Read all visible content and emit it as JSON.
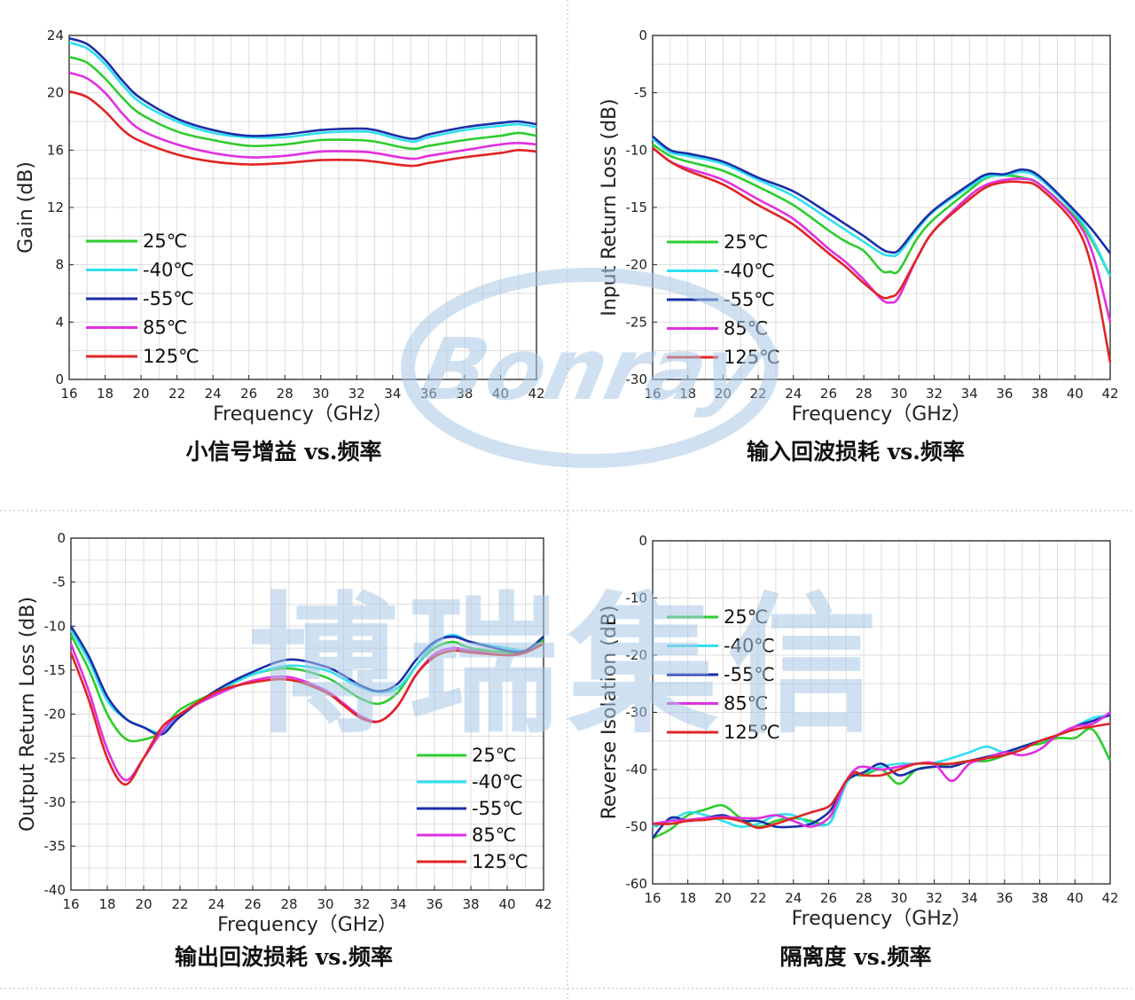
{
  "colors": {
    "25C": "#2ecc2e",
    "m40C": "#2fe0ee",
    "m55C": "#1a2ea8",
    "85C": "#e030e0",
    "125C": "#e02424",
    "grid": "#dddddd",
    "divider": "#bbbbbb",
    "watermark": "#a9c9e6"
  },
  "watermark": {
    "logo_text": "Bonray",
    "chinese_text": "博瑞集信"
  },
  "chart_data": [
    {
      "type": "line",
      "id": "gain",
      "caption": "小信号增益 vs.频率",
      "xlabel": "Frequency（GHz）",
      "ylabel": "Gain (dB)",
      "xlim": [
        16,
        42
      ],
      "ylim": [
        0,
        24
      ],
      "xticks": [
        16,
        18,
        20,
        22,
        24,
        26,
        28,
        30,
        32,
        34,
        36,
        38,
        40,
        42
      ],
      "yticks": [
        0,
        4,
        8,
        12,
        16,
        20,
        24
      ],
      "grid": true,
      "legend_position": "left-bottom",
      "x": [
        16,
        17,
        18,
        19,
        20,
        22,
        24,
        26,
        28,
        30,
        32,
        33,
        35,
        36,
        38,
        40,
        41,
        42
      ],
      "series": [
        {
          "name": "25℃",
          "color_key": "25C",
          "values": [
            22.5,
            22.1,
            21.0,
            19.6,
            18.5,
            17.3,
            16.7,
            16.3,
            16.4,
            16.7,
            16.7,
            16.6,
            16.1,
            16.3,
            16.7,
            17.0,
            17.2,
            17.0
          ]
        },
        {
          "name": "-40℃",
          "color_key": "m40C",
          "values": [
            23.5,
            23.1,
            22.0,
            20.5,
            19.3,
            18.0,
            17.2,
            16.9,
            16.9,
            17.2,
            17.3,
            17.2,
            16.6,
            16.9,
            17.4,
            17.7,
            17.8,
            17.6
          ]
        },
        {
          "name": "-55℃",
          "color_key": "m55C",
          "values": [
            23.8,
            23.4,
            22.3,
            20.8,
            19.6,
            18.2,
            17.4,
            17.0,
            17.1,
            17.4,
            17.5,
            17.4,
            16.8,
            17.1,
            17.6,
            17.9,
            18.0,
            17.8
          ]
        },
        {
          "name": "85℃",
          "color_key": "85C",
          "values": [
            21.4,
            21.0,
            20.0,
            18.5,
            17.4,
            16.4,
            15.8,
            15.5,
            15.6,
            15.9,
            15.9,
            15.8,
            15.4,
            15.6,
            16.0,
            16.4,
            16.5,
            16.4
          ]
        },
        {
          "name": "125℃",
          "color_key": "125C",
          "values": [
            20.1,
            19.7,
            18.7,
            17.4,
            16.6,
            15.7,
            15.2,
            15.0,
            15.1,
            15.3,
            15.3,
            15.2,
            14.9,
            15.1,
            15.5,
            15.8,
            16.0,
            15.9
          ]
        }
      ]
    },
    {
      "type": "line",
      "id": "input_return_loss",
      "caption": "输入回波损耗 vs.频率",
      "xlabel": "Frequency（GHz）",
      "ylabel": "Input Return Loss (dB)",
      "xlim": [
        16,
        42
      ],
      "ylim": [
        -30,
        0
      ],
      "xticks": [
        16,
        18,
        20,
        22,
        24,
        26,
        28,
        30,
        32,
        34,
        36,
        38,
        40,
        42
      ],
      "yticks": [
        0,
        -5,
        -10,
        -15,
        -20,
        -25,
        -30
      ],
      "grid": true,
      "legend_position": "left-bottom",
      "x": [
        16,
        17,
        18,
        20,
        22,
        24,
        26,
        27,
        28,
        29,
        29.5,
        30,
        31,
        32,
        34,
        35,
        36,
        37,
        38,
        40,
        41,
        42
      ],
      "series": [
        {
          "name": "25℃",
          "color_key": "25C",
          "values": [
            -9.5,
            -10.5,
            -11.0,
            -11.8,
            -13.2,
            -14.8,
            -17.0,
            -18.0,
            -18.8,
            -20.5,
            -20.6,
            -20.5,
            -17.8,
            -16.0,
            -13.5,
            -12.4,
            -12.2,
            -12.4,
            -13.0,
            -15.8,
            -18.0,
            -21.0
          ]
        },
        {
          "name": "-40℃",
          "color_key": "m40C",
          "values": [
            -9.0,
            -10.2,
            -10.5,
            -11.2,
            -12.6,
            -14.0,
            -16.0,
            -17.0,
            -18.0,
            -19.0,
            -19.2,
            -19.0,
            -17.0,
            -15.3,
            -13.2,
            -12.3,
            -12.2,
            -11.9,
            -12.5,
            -15.5,
            -17.8,
            -21.0
          ]
        },
        {
          "name": "-55℃",
          "color_key": "m55C",
          "values": [
            -8.8,
            -10.0,
            -10.3,
            -11.0,
            -12.4,
            -13.6,
            -15.5,
            -16.5,
            -17.5,
            -18.6,
            -18.9,
            -18.7,
            -16.8,
            -15.2,
            -13.0,
            -12.1,
            -12.1,
            -11.7,
            -12.3,
            -15.3,
            -17.0,
            -19.0
          ]
        },
        {
          "name": "85℃",
          "color_key": "85C",
          "values": [
            -9.8,
            -11.0,
            -11.6,
            -12.6,
            -14.3,
            -16.0,
            -18.6,
            -19.8,
            -21.3,
            -23.0,
            -23.3,
            -22.8,
            -19.5,
            -17.0,
            -14.0,
            -13.0,
            -12.6,
            -12.5,
            -13.0,
            -16.0,
            -19.0,
            -25.0
          ]
        },
        {
          "name": "125℃",
          "color_key": "125C",
          "values": [
            -9.8,
            -11.0,
            -11.8,
            -13.0,
            -14.8,
            -16.5,
            -19.0,
            -20.2,
            -21.6,
            -22.8,
            -22.8,
            -22.3,
            -19.5,
            -17.0,
            -14.3,
            -13.2,
            -12.8,
            -12.8,
            -13.3,
            -16.5,
            -20.5,
            -28.5
          ]
        }
      ]
    },
    {
      "type": "line",
      "id": "output_return_loss",
      "caption": "输出回波损耗 vs.频率",
      "xlabel": "Frequency（GHz）",
      "ylabel": "Output Return Loss (dB)",
      "xlim": [
        16,
        42
      ],
      "ylim": [
        -40,
        0
      ],
      "xticks": [
        16,
        18,
        20,
        22,
        24,
        26,
        28,
        30,
        32,
        34,
        36,
        38,
        40,
        42
      ],
      "yticks": [
        0,
        -5,
        -10,
        -15,
        -20,
        -25,
        -30,
        -35,
        -40
      ],
      "grid": true,
      "legend_position": "right-bottom",
      "x": [
        16,
        17,
        18,
        19,
        20,
        21,
        22,
        24,
        26,
        28,
        30,
        31,
        32,
        33,
        34,
        35,
        36,
        37,
        38,
        40,
        41,
        42
      ],
      "series": [
        {
          "name": "25℃",
          "color_key": "25C",
          "values": [
            -11.0,
            -15.0,
            -20.0,
            -22.8,
            -22.9,
            -22.0,
            -19.5,
            -17.5,
            -15.5,
            -14.8,
            -15.8,
            -17.0,
            -18.3,
            -18.8,
            -17.5,
            -14.5,
            -12.5,
            -11.8,
            -12.5,
            -13.0,
            -13.0,
            -11.5
          ]
        },
        {
          "name": "-40℃",
          "color_key": "m40C",
          "values": [
            -10.5,
            -14.0,
            -18.5,
            -20.5,
            -21.5,
            -22.0,
            -20.0,
            -17.5,
            -15.5,
            -14.5,
            -15.0,
            -16.0,
            -17.0,
            -17.5,
            -17.0,
            -14.5,
            -12.0,
            -11.0,
            -11.8,
            -12.5,
            -12.8,
            -12.0
          ]
        },
        {
          "name": "-55℃",
          "color_key": "m55C",
          "values": [
            -10.0,
            -13.5,
            -18.0,
            -20.5,
            -21.5,
            -22.3,
            -20.3,
            -17.3,
            -15.2,
            -13.8,
            -14.6,
            -15.6,
            -16.8,
            -17.4,
            -16.5,
            -13.8,
            -11.8,
            -11.2,
            -11.8,
            -12.8,
            -12.8,
            -11.2
          ]
        },
        {
          "name": "85℃",
          "color_key": "85C",
          "values": [
            -12.0,
            -17.5,
            -24.0,
            -27.5,
            -25.0,
            -22.0,
            -20.0,
            -17.8,
            -16.2,
            -15.8,
            -17.3,
            -18.8,
            -20.3,
            -20.8,
            -19.0,
            -15.5,
            -13.2,
            -12.5,
            -12.8,
            -13.3,
            -13.0,
            -12.0
          ]
        },
        {
          "name": "125℃",
          "color_key": "125C",
          "values": [
            -13.0,
            -18.5,
            -25.0,
            -28.0,
            -25.0,
            -21.5,
            -20.0,
            -17.5,
            -16.4,
            -16.1,
            -17.5,
            -19.0,
            -20.5,
            -20.8,
            -19.0,
            -15.5,
            -13.5,
            -12.8,
            -13.0,
            -13.3,
            -13.0,
            -12.0
          ]
        }
      ]
    },
    {
      "type": "line",
      "id": "reverse_isolation",
      "caption": "隔离度 vs.频率",
      "xlabel": "Frequency（GHz）",
      "ylabel": "Reverse Isolation (dB)",
      "xlim": [
        16,
        42
      ],
      "ylim": [
        -60,
        0
      ],
      "xticks": [
        16,
        18,
        20,
        22,
        24,
        26,
        28,
        30,
        32,
        34,
        36,
        38,
        40,
        42
      ],
      "yticks": [
        0,
        -10,
        -20,
        -30,
        -40,
        -50,
        -60
      ],
      "grid": true,
      "legend_position": "left-top",
      "x": [
        16,
        17,
        18,
        19,
        20,
        21,
        22,
        23,
        24,
        25,
        26,
        26.5,
        27,
        27.5,
        28,
        29,
        30,
        31,
        32,
        33,
        34,
        35,
        36,
        37,
        38,
        39,
        40,
        41,
        42
      ],
      "series": [
        {
          "name": "25℃",
          "color_key": "25C",
          "values": [
            -52.0,
            -50.5,
            -48.0,
            -47.0,
            -46.3,
            -48.5,
            -50.0,
            -49.0,
            -48.5,
            -49.0,
            -49.5,
            -46.0,
            -42.0,
            -41.0,
            -41.0,
            -40.0,
            -42.5,
            -40.0,
            -39.5,
            -39.0,
            -38.5,
            -38.5,
            -37.5,
            -36.0,
            -35.5,
            -34.5,
            -34.5,
            -33.0,
            -38.5
          ]
        },
        {
          "name": "-40℃",
          "color_key": "m40C",
          "values": [
            -50.0,
            -49.0,
            -47.5,
            -48.0,
            -49.0,
            -50.0,
            -49.5,
            -48.0,
            -48.0,
            -49.5,
            -49.5,
            -46.5,
            -42.5,
            -41.0,
            -40.5,
            -39.5,
            -39.0,
            -39.0,
            -38.8,
            -38.0,
            -37.0,
            -36.0,
            -37.0,
            -36.0,
            -35.0,
            -34.0,
            -32.5,
            -31.0,
            -30.5
          ]
        },
        {
          "name": "-55℃",
          "color_key": "m55C",
          "values": [
            -52.0,
            -48.5,
            -49.0,
            -48.5,
            -48.0,
            -49.0,
            -49.0,
            -50.0,
            -50.0,
            -49.5,
            -47.5,
            -45.0,
            -42.0,
            -41.0,
            -40.5,
            -39.0,
            -41.0,
            -40.0,
            -39.5,
            -39.5,
            -38.5,
            -37.8,
            -37.0,
            -36.0,
            -35.0,
            -34.0,
            -32.5,
            -31.5,
            -30.5
          ]
        },
        {
          "name": "85℃",
          "color_key": "85C",
          "values": [
            -49.5,
            -49.0,
            -48.8,
            -48.5,
            -48.3,
            -48.5,
            -48.5,
            -48.0,
            -49.0,
            -50.0,
            -48.5,
            -45.5,
            -42.0,
            -40.0,
            -39.5,
            -40.0,
            -39.5,
            -39.0,
            -39.0,
            -42.0,
            -39.0,
            -38.0,
            -37.0,
            -37.5,
            -36.5,
            -34.0,
            -32.5,
            -32.0,
            -30.0
          ]
        },
        {
          "name": "125℃",
          "color_key": "125C",
          "values": [
            -49.5,
            -49.5,
            -49.0,
            -48.8,
            -48.5,
            -49.0,
            -50.2,
            -49.5,
            -48.5,
            -47.5,
            -46.5,
            -44.5,
            -42.0,
            -40.5,
            -41.0,
            -41.0,
            -40.0,
            -39.0,
            -39.0,
            -39.0,
            -38.5,
            -38.0,
            -37.5,
            -36.5,
            -35.0,
            -34.0,
            -33.0,
            -32.5,
            -32.0
          ]
        }
      ]
    }
  ]
}
